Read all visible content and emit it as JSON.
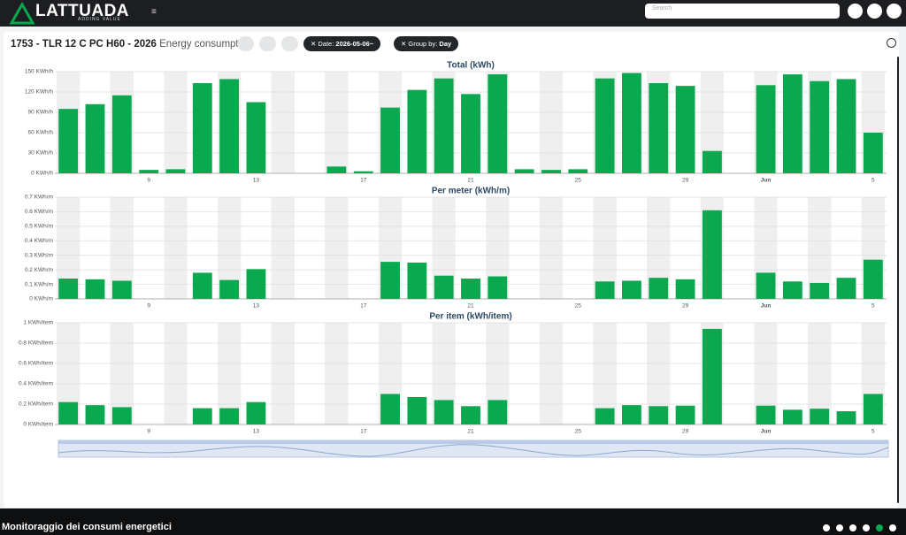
{
  "header": {
    "logo": "LATTUADA",
    "tagline": "ADDING VALUE",
    "search_placeholder": "Search"
  },
  "toolbar": {
    "title": "1753 - TLR 12 C PC H60 - 2026",
    "subtitle": "Energy consumption",
    "filters": [
      {
        "label": "Date:",
        "value": "2026-05-06~"
      },
      {
        "label": "Group by:",
        "value": "Day"
      }
    ]
  },
  "chart_data": [
    {
      "type": "bar",
      "title": "Total (kWh)",
      "color": "#0aa84f",
      "categories": [
        null,
        null,
        null,
        "9",
        null,
        null,
        null,
        "13",
        null,
        null,
        null,
        "17",
        null,
        null,
        null,
        "21",
        null,
        null,
        null,
        "25",
        null,
        null,
        null,
        "29",
        null,
        null,
        "Jun",
        null,
        null,
        null,
        "5"
      ],
      "values": [
        95,
        102,
        115,
        5,
        6,
        133,
        139,
        105,
        null,
        null,
        10,
        3,
        97,
        123,
        140,
        117,
        146,
        6,
        5,
        6,
        140,
        148,
        133,
        129,
        33,
        null,
        130,
        146,
        136,
        139,
        60
      ],
      "ylim": [
        0,
        150
      ],
      "yticks": [
        {
          "value": 0,
          "label": "0 KWh/h"
        },
        {
          "value": 30,
          "label": "30 KWh/h"
        },
        {
          "value": 60,
          "label": "60 KWh/h"
        },
        {
          "value": 90,
          "label": "90 KWh/h"
        },
        {
          "value": 120,
          "label": "120 KWh/h"
        },
        {
          "value": 150,
          "label": "150 KWh/h"
        }
      ],
      "grid": true
    },
    {
      "type": "bar",
      "title": "Per meter (kWh/m)",
      "color": "#0aa84f",
      "categories": [
        null,
        null,
        null,
        "9",
        null,
        null,
        null,
        "13",
        null,
        null,
        null,
        "17",
        null,
        null,
        null,
        "21",
        null,
        null,
        null,
        "25",
        null,
        null,
        null,
        "29",
        null,
        null,
        "Jun",
        null,
        null,
        null,
        "5"
      ],
      "values": [
        0.14,
        0.135,
        0.125,
        null,
        null,
        0.18,
        0.13,
        0.205,
        null,
        null,
        null,
        null,
        0.255,
        0.25,
        0.16,
        0.14,
        0.155,
        null,
        null,
        null,
        0.12,
        0.125,
        0.145,
        0.135,
        0.61,
        null,
        0.18,
        0.12,
        0.11,
        0.145,
        0.27
      ],
      "ylim": [
        0,
        0.7
      ],
      "yticks": [
        {
          "value": 0,
          "label": "0 KWh/m"
        },
        {
          "value": 0.1,
          "label": "0.1 KWh/m"
        },
        {
          "value": 0.2,
          "label": "0.2 KWh/m"
        },
        {
          "value": 0.3,
          "label": "0.3 KWh/m"
        },
        {
          "value": 0.4,
          "label": "0.4 KWh/m"
        },
        {
          "value": 0.5,
          "label": "0.5 KWh/m"
        },
        {
          "value": 0.6,
          "label": "0.6 KWh/m"
        },
        {
          "value": 0.7,
          "label": "0.7 KWh/m"
        }
      ],
      "grid": true
    },
    {
      "type": "bar",
      "title": "Per item (kWh/item)",
      "color": "#0aa84f",
      "categories": [
        null,
        null,
        null,
        "9",
        null,
        null,
        null,
        "13",
        null,
        null,
        null,
        "17",
        null,
        null,
        null,
        "21",
        null,
        null,
        null,
        "25",
        null,
        null,
        null,
        "29",
        null,
        null,
        "Jun",
        null,
        null,
        null,
        "5"
      ],
      "values": [
        0.22,
        0.19,
        0.17,
        null,
        null,
        0.16,
        0.16,
        0.22,
        null,
        null,
        null,
        null,
        0.3,
        0.27,
        0.24,
        0.18,
        0.24,
        null,
        null,
        null,
        0.16,
        0.19,
        0.18,
        0.185,
        0.94,
        null,
        0.185,
        0.145,
        0.155,
        0.13,
        0.3
      ],
      "ylim": [
        0,
        1
      ],
      "yticks": [
        {
          "value": 0,
          "label": "0 KWh/item"
        },
        {
          "value": 0.2,
          "label": "0.2 KWh/item"
        },
        {
          "value": 0.4,
          "label": "0.4 KWh/item"
        },
        {
          "value": 0.6,
          "label": "0.6 KWh/item"
        },
        {
          "value": 0.8,
          "label": "0.8 KWh/item"
        },
        {
          "value": 1,
          "label": "1 KWh/item"
        }
      ],
      "grid": true
    }
  ],
  "footer": {
    "caption": "Monitoraggio dei consumi energetici"
  }
}
